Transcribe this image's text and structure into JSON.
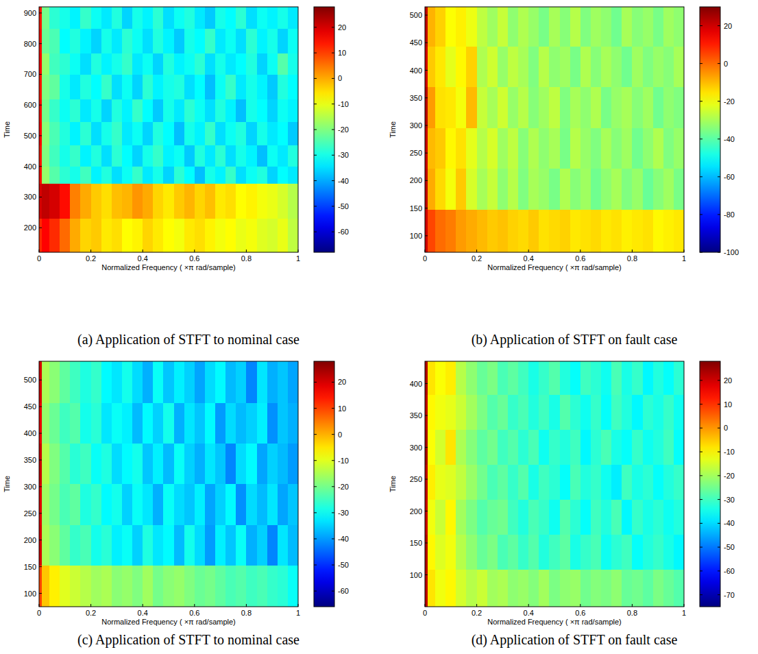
{
  "chart_data": [
    {
      "type": "heatmap",
      "title": "(a) Application of STFT to nominal case",
      "xlabel": "Normalized Frequency  ( ×π rad/sample)",
      "ylabel": "Time",
      "xlim": [
        0,
        1
      ],
      "xticks": [
        0,
        0.2,
        0.4,
        0.6,
        0.8,
        1
      ],
      "ylim": [
        120,
        920
      ],
      "yticks": [
        200,
        300,
        400,
        500,
        600,
        700,
        800,
        900
      ],
      "x": [
        0,
        0.01,
        0.04,
        0.08,
        0.12,
        0.16,
        0.2,
        0.24,
        0.28,
        0.32,
        0.36,
        0.4,
        0.44,
        0.48,
        0.52,
        0.56,
        0.6,
        0.64,
        0.68,
        0.72,
        0.76,
        0.8,
        0.84,
        0.88,
        0.92,
        0.96,
        1
      ],
      "y": [
        120,
        230,
        345,
        400,
        470,
        545,
        620,
        700,
        770,
        850,
        920
      ],
      "cells": [
        [
          12,
          16,
          12,
          6,
          0,
          -4,
          -3,
          -6,
          -5,
          -8,
          -7,
          -4,
          -6,
          -8,
          -9,
          -6,
          -5,
          -7,
          -9,
          -8,
          -10,
          -9,
          -11,
          -12,
          -10,
          -14
        ],
        [
          20,
          22,
          20,
          15,
          4,
          0,
          -3,
          -5,
          -2,
          -1,
          2,
          0,
          -4,
          -6,
          -3,
          -1,
          -4,
          -2,
          -6,
          -5,
          -8,
          -7,
          -9,
          -10,
          -12,
          -15
        ],
        [
          15,
          -18,
          -24,
          -28,
          -30,
          -26,
          -33,
          -29,
          -35,
          -31,
          -27,
          -34,
          -30,
          -36,
          -28,
          -32,
          -38,
          -30,
          -33,
          -27,
          -35,
          -31,
          -29,
          -36,
          -32,
          -34
        ],
        [
          14,
          -20,
          -26,
          -30,
          -27,
          -33,
          -29,
          -35,
          -28,
          -32,
          -36,
          -30,
          -27,
          -33,
          -31,
          -37,
          -29,
          -34,
          -28,
          -35,
          -30,
          -33,
          -38,
          -31,
          -34,
          -29
        ],
        [
          16,
          -19,
          -25,
          -29,
          -33,
          -28,
          -35,
          -30,
          -27,
          -34,
          -31,
          -36,
          -29,
          -32,
          -38,
          -30,
          -33,
          -27,
          -35,
          -31,
          -29,
          -36,
          -30,
          -34,
          -32,
          -37
        ],
        [
          15,
          -21,
          -27,
          -31,
          -28,
          -34,
          -30,
          -36,
          -29,
          -33,
          -27,
          -32,
          -37,
          -30,
          -34,
          -28,
          -31,
          -35,
          -29,
          -33,
          -38,
          -30,
          -32,
          -36,
          -31,
          -33
        ],
        [
          14,
          -20,
          -23,
          -30,
          -34,
          -29,
          -32,
          -27,
          -35,
          -31,
          -36,
          -28,
          -33,
          -30,
          -29,
          -35,
          -32,
          -38,
          -31,
          -27,
          -34,
          -30,
          -33,
          -37,
          -29,
          -32
        ],
        [
          16,
          -18,
          -26,
          -28,
          -31,
          -35,
          -29,
          -33,
          -30,
          -27,
          -34,
          -31,
          -36,
          -29,
          -33,
          -31,
          -28,
          -35,
          -30,
          -34,
          -32,
          -29,
          -36,
          -31,
          -24,
          -30
        ],
        [
          15,
          -22,
          -25,
          -32,
          -29,
          -33,
          -36,
          -30,
          -34,
          -28,
          -31,
          -35,
          -29,
          -33,
          -37,
          -30,
          -32,
          -27,
          -34,
          -31,
          -35,
          -28,
          -33,
          -30,
          -36,
          -31
        ],
        [
          14,
          -21,
          -28,
          -30,
          -33,
          -27,
          -31,
          -34,
          -29,
          -36,
          -30,
          -33,
          -28,
          -35,
          -31,
          -29,
          -34,
          -37,
          -30,
          -32,
          -28,
          -35,
          -31,
          -33,
          -30,
          -34
        ]
      ],
      "color_range": [
        -68,
        28
      ],
      "color_ticks": [
        -60,
        -50,
        -40,
        -30,
        -20,
        -10,
        0,
        10,
        20
      ]
    },
    {
      "type": "heatmap",
      "title": "(b) Application of STFT on fault case",
      "xlabel": "Normalized Frequency  ( ×π rad/sample)",
      "ylabel": "Time",
      "xlim": [
        0,
        1
      ],
      "xticks": [
        0,
        0.2,
        0.4,
        0.6,
        0.8,
        1
      ],
      "ylim": [
        70,
        515
      ],
      "yticks": [
        100,
        150,
        200,
        250,
        300,
        350,
        400,
        450,
        500
      ],
      "x": [
        0,
        0.01,
        0.04,
        0.08,
        0.12,
        0.16,
        0.2,
        0.24,
        0.28,
        0.32,
        0.36,
        0.4,
        0.44,
        0.48,
        0.52,
        0.56,
        0.6,
        0.64,
        0.68,
        0.72,
        0.76,
        0.8,
        0.84,
        0.88,
        0.92,
        0.96,
        1
      ],
      "y": [
        70,
        148,
        222,
        296,
        370,
        444,
        515
      ],
      "cells": [
        [
          20,
          5,
          0,
          -2,
          -6,
          -8,
          -10,
          -12,
          -11,
          -13,
          -14,
          -12,
          -15,
          -14,
          -13,
          -16,
          -15,
          -14,
          -16,
          -15,
          -17,
          -16,
          -15,
          -18,
          -17,
          -16
        ],
        [
          22,
          -8,
          -14,
          -20,
          -12,
          -24,
          -30,
          -26,
          -33,
          -28,
          -35,
          -30,
          -32,
          -36,
          -29,
          -34,
          -31,
          -37,
          -33,
          -30,
          -35,
          -32,
          -38,
          -34,
          -31,
          -36
        ],
        [
          21,
          -10,
          -12,
          -18,
          -15,
          -22,
          -28,
          -24,
          -31,
          -27,
          -34,
          -29,
          -33,
          -30,
          -36,
          -28,
          -32,
          -35,
          -30,
          -34,
          -31,
          -37,
          -33,
          -29,
          -35,
          -32
        ],
        [
          23,
          -6,
          -15,
          -16,
          -20,
          -10,
          -26,
          -30,
          -25,
          -32,
          -28,
          -34,
          -31,
          -27,
          -35,
          -30,
          -33,
          -29,
          -36,
          -32,
          -30,
          -34,
          -31,
          -37,
          -33,
          -35
        ],
        [
          20,
          -12,
          -16,
          -22,
          -18,
          -13,
          -29,
          -25,
          -32,
          -27,
          -30,
          -35,
          -28,
          -33,
          -31,
          -36,
          -29,
          -34,
          -30,
          -33,
          -37,
          -31,
          -35,
          -32,
          -34,
          -30
        ],
        [
          22,
          -9,
          -13,
          -19,
          -17,
          -21,
          -27,
          -31,
          -26,
          -33,
          -29,
          -32,
          -36,
          -30,
          -34,
          -28,
          -35,
          -31,
          -33,
          -37,
          -30,
          -34,
          -32,
          -36,
          -31,
          -33
        ]
      ],
      "color_range": [
        -100,
        30
      ],
      "color_ticks": [
        -100,
        -80,
        -60,
        -40,
        -20,
        0,
        20
      ]
    },
    {
      "type": "heatmap",
      "title": "(c) Application of STFT to nominal case",
      "xlabel": "Normalized Frequency  ( ×π rad/sample)",
      "ylabel": "Time",
      "xlim": [
        0,
        1
      ],
      "xticks": [
        0,
        0.2,
        0.4,
        0.6,
        0.8,
        1
      ],
      "ylim": [
        75,
        535
      ],
      "yticks": [
        100,
        150,
        200,
        250,
        300,
        350,
        400,
        450,
        500
      ],
      "x": [
        0,
        0.01,
        0.04,
        0.08,
        0.12,
        0.16,
        0.2,
        0.24,
        0.28,
        0.32,
        0.36,
        0.4,
        0.44,
        0.48,
        0.52,
        0.56,
        0.6,
        0.64,
        0.68,
        0.72,
        0.76,
        0.8,
        0.84,
        0.88,
        0.92,
        0.96,
        1
      ],
      "y": [
        75,
        153,
        229,
        305,
        381,
        457,
        535
      ],
      "cells": [
        [
          10,
          -2,
          -6,
          -10,
          -12,
          -14,
          -16,
          -15,
          -18,
          -17,
          -19,
          -16,
          -20,
          -18,
          -17,
          -19,
          -21,
          -20,
          -22,
          -24,
          -23,
          -25,
          -24,
          -26,
          -27,
          -30
        ],
        [
          20,
          -15,
          -18,
          -22,
          -26,
          -24,
          -29,
          -27,
          -32,
          -30,
          -35,
          -28,
          -33,
          -31,
          -37,
          -29,
          -34,
          -40,
          -32,
          -36,
          -30,
          -38,
          -35,
          -42,
          -33,
          -37
        ],
        [
          19,
          -16,
          -20,
          -24,
          -22,
          -28,
          -26,
          -31,
          -29,
          -35,
          -30,
          -33,
          -38,
          -30,
          -34,
          -36,
          -32,
          -39,
          -35,
          -31,
          -41,
          -34,
          -37,
          -33,
          -39,
          -36
        ],
        [
          21,
          -14,
          -19,
          -23,
          -27,
          -25,
          -30,
          -28,
          -34,
          -31,
          -29,
          -36,
          -32,
          -37,
          -30,
          -35,
          -38,
          -33,
          -36,
          -42,
          -34,
          -31,
          -39,
          -35,
          -37,
          -40
        ],
        [
          18,
          -17,
          -21,
          -25,
          -23,
          -29,
          -27,
          -33,
          -30,
          -32,
          -37,
          -31,
          -35,
          -29,
          -38,
          -33,
          -36,
          -31,
          -40,
          -34,
          -37,
          -35,
          -32,
          -41,
          -36,
          -38
        ],
        [
          20,
          -15,
          -18,
          -22,
          -25,
          -28,
          -26,
          -31,
          -33,
          -29,
          -34,
          -38,
          -30,
          -36,
          -32,
          -35,
          -39,
          -34,
          -31,
          -37,
          -35,
          -42,
          -33,
          -38,
          -36,
          -39
        ]
      ],
      "color_range": [
        -66,
        28
      ],
      "color_ticks": [
        -60,
        -50,
        -40,
        -30,
        -20,
        -10,
        0,
        10,
        20
      ]
    },
    {
      "type": "heatmap",
      "title": "(d) Application of STFT on fault case",
      "xlabel": "Normalized Frequency  ( ×π rad/sample)",
      "ylabel": "Time",
      "xlim": [
        0,
        1
      ],
      "xticks": [
        0,
        0.2,
        0.4,
        0.6,
        0.8,
        1
      ],
      "ylim": [
        50,
        435
      ],
      "yticks": [
        100,
        150,
        200,
        250,
        300,
        350,
        400
      ],
      "x": [
        0,
        0.01,
        0.04,
        0.08,
        0.12,
        0.16,
        0.2,
        0.24,
        0.28,
        0.32,
        0.36,
        0.4,
        0.44,
        0.48,
        0.52,
        0.56,
        0.6,
        0.64,
        0.68,
        0.72,
        0.76,
        0.8,
        0.84,
        0.88,
        0.92,
        0.96,
        1
      ],
      "y": [
        50,
        108,
        163,
        218,
        273,
        328,
        383,
        435
      ],
      "cells": [
        [
          22,
          -8,
          -12,
          -10,
          -15,
          -18,
          -16,
          -20,
          -19,
          -22,
          -21,
          -23,
          -20,
          -24,
          -22,
          -21,
          -25,
          -23,
          -24,
          -22,
          -26,
          -25,
          -27,
          -24,
          -26,
          -28
        ],
        [
          23,
          -10,
          -14,
          -12,
          -18,
          -22,
          -26,
          -24,
          -29,
          -27,
          -31,
          -28,
          -33,
          -30,
          -27,
          -34,
          -31,
          -29,
          -35,
          -32,
          -30,
          -36,
          -33,
          -31,
          -34,
          -37
        ],
        [
          21,
          -12,
          -16,
          -10,
          -20,
          -24,
          -28,
          -26,
          -25,
          -30,
          -33,
          -29,
          -31,
          -35,
          -28,
          -32,
          -36,
          -30,
          -33,
          -29,
          -37,
          -31,
          -34,
          -32,
          -35,
          -33
        ],
        [
          22,
          -9,
          -13,
          -14,
          -17,
          -21,
          -25,
          -29,
          -27,
          -31,
          -28,
          -34,
          -30,
          -32,
          -36,
          -29,
          -33,
          -31,
          -35,
          -38,
          -30,
          -34,
          -32,
          -36,
          -33,
          -31
        ],
        [
          24,
          -11,
          -15,
          -8,
          -19,
          -23,
          -27,
          -25,
          -30,
          -28,
          -32,
          -29,
          -35,
          -31,
          -33,
          -30,
          -37,
          -32,
          -29,
          -34,
          -36,
          -31,
          -35,
          -33,
          -30,
          -36
        ],
        [
          22,
          -10,
          -12,
          -13,
          -16,
          -20,
          -24,
          -28,
          -26,
          -31,
          -29,
          -33,
          -30,
          -34,
          -28,
          -32,
          -35,
          -31,
          -36,
          -30,
          -33,
          -37,
          -32,
          -34,
          -31,
          -35
        ],
        [
          23,
          -8,
          -11,
          -9,
          -18,
          -22,
          -26,
          -24,
          -29,
          -27,
          -30,
          -34,
          -31,
          -28,
          -33,
          -36,
          -30,
          -32,
          -35,
          -29,
          -34,
          -31,
          -37,
          -33,
          -36,
          -32
        ]
      ],
      "color_range": [
        -75,
        28
      ],
      "color_ticks": [
        -70,
        -60,
        -50,
        -40,
        -30,
        -20,
        -10,
        0,
        10,
        20
      ]
    }
  ]
}
